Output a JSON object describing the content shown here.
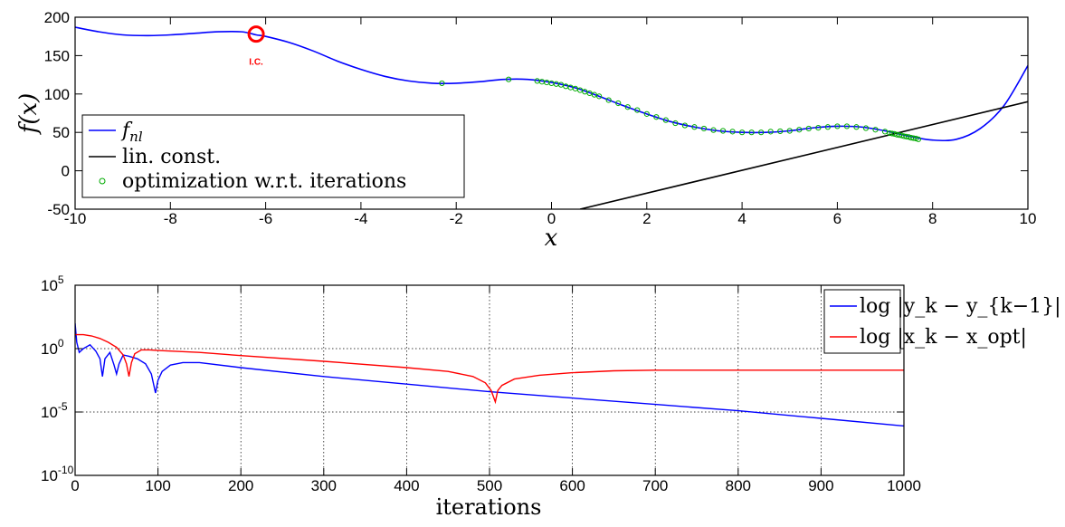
{
  "chart_data": [
    {
      "type": "line",
      "xlabel": "x",
      "ylabel": "f(x)",
      "xlim": [
        -10,
        10
      ],
      "ylim": [
        -50,
        200
      ],
      "xticks": [
        "-10",
        "-8",
        "-6",
        "-4",
        "-2",
        "0",
        "2",
        "4",
        "6",
        "8",
        "10"
      ],
      "yticks": [
        "-50",
        "0",
        "50",
        "100",
        "150",
        "200"
      ],
      "grid": false,
      "legend_position": "bottom-left",
      "series": [
        {
          "name": "f_nl",
          "legend_label": "f_nl",
          "color": "#0000ff",
          "style": "line",
          "x": [
            -10,
            -9.5,
            -9,
            -8.5,
            -8,
            -7.5,
            -7,
            -6.5,
            -6.2,
            -6,
            -5.5,
            -5,
            -4.5,
            -4,
            -3.5,
            -3,
            -2.5,
            -2,
            -1.5,
            -1,
            -0.5,
            0,
            0.5,
            1,
            1.5,
            2,
            2.5,
            3,
            3.5,
            4,
            4.5,
            5,
            5.5,
            6,
            6.5,
            7,
            7.5,
            8,
            8.5,
            9,
            9.5,
            10
          ],
          "y": [
            187,
            181,
            177,
            176,
            177,
            179,
            181,
            181,
            177,
            175,
            167,
            156,
            143,
            132,
            123,
            117,
            114,
            114,
            116,
            119,
            119,
            115,
            108,
            97,
            85,
            74,
            64,
            57,
            52,
            50,
            50,
            52,
            56,
            58,
            57,
            52,
            45,
            40,
            41,
            55,
            85,
            137
          ]
        },
        {
          "name": "lin. const.",
          "legend_label": "lin. const.",
          "color": "#000000",
          "style": "line",
          "x": [
            0.6,
            10
          ],
          "y": [
            -50,
            90
          ]
        },
        {
          "name": "optimization w.r.t. iterations",
          "legend_label": "optimization w.r.t. iterations",
          "color": "#00aa00",
          "style": "markers",
          "x": [
            -2.3,
            -0.9,
            -0.3,
            -0.2,
            -0.1,
            0,
            0.1,
            0.2,
            0.3,
            0.4,
            0.5,
            0.6,
            0.7,
            0.8,
            0.9,
            1.0,
            1.2,
            1.4,
            1.6,
            1.8,
            2.0,
            2.2,
            2.4,
            2.6,
            2.8,
            3.0,
            3.2,
            3.4,
            3.6,
            3.8,
            4.0,
            4.2,
            4.4,
            4.6,
            4.8,
            5.0,
            5.2,
            5.4,
            5.6,
            5.8,
            6.0,
            6.2,
            6.4,
            6.6,
            6.8,
            7.0,
            7.1,
            7.15,
            7.2,
            7.25,
            7.3,
            7.35,
            7.4,
            7.45,
            7.5,
            7.55,
            7.6,
            7.65,
            7.7
          ],
          "y": [
            114,
            119,
            117,
            116,
            115,
            114,
            113,
            112,
            110,
            108.5,
            107,
            105,
            103,
            101,
            99,
            97,
            92,
            88,
            83,
            79,
            74,
            70,
            66,
            62,
            59,
            57,
            55,
            53,
            52,
            51,
            50,
            50,
            50,
            51,
            51.5,
            52,
            53.5,
            55,
            56,
            57,
            58,
            58,
            57,
            55.5,
            53.5,
            51,
            49,
            48.5,
            48,
            47,
            46.5,
            46,
            45,
            44.5,
            44,
            43,
            42.5,
            42,
            41
          ]
        }
      ],
      "annotations": [
        {
          "text": "I.C.",
          "x": -6.2,
          "y": 178,
          "color": "#ff0000",
          "marker": "circle"
        }
      ]
    },
    {
      "type": "line",
      "xlabel": "iterations",
      "ylabel": "",
      "xlim": [
        0,
        1000
      ],
      "ylim_exponent": [
        -10,
        5
      ],
      "yscale": "log",
      "xticks": [
        "0",
        "100",
        "200",
        "300",
        "400",
        "500",
        "600",
        "700",
        "800",
        "900",
        "1000"
      ],
      "yticks": [
        {
          "base": "10",
          "exp": "5",
          "value_exp": 5
        },
        {
          "base": "10",
          "exp": "0",
          "value_exp": 0
        },
        {
          "base": "10",
          "exp": "-5",
          "value_exp": -5
        },
        {
          "base": "10",
          "exp": "-10",
          "value_exp": -10
        }
      ],
      "grid": true,
      "legend_position": "top-right",
      "series": [
        {
          "name": "log|y_k - y_k-1|",
          "legend_label": "log |y_k − y_{k−1}|",
          "color": "#0000ff",
          "x_exp_pairs": [
            [
              0,
              2
            ],
            [
              2,
              0.5
            ],
            [
              5,
              -0.3
            ],
            [
              10,
              0
            ],
            [
              18,
              0.3
            ],
            [
              25,
              -0.2
            ],
            [
              30,
              -0.8
            ],
            [
              33,
              -2.2
            ],
            [
              36,
              -0.8
            ],
            [
              42,
              -0.3
            ],
            [
              47,
              -1.3
            ],
            [
              50,
              -2
            ],
            [
              53,
              -1.2
            ],
            [
              58,
              -0.5
            ],
            [
              65,
              -0.6
            ],
            [
              75,
              -0.8
            ],
            [
              85,
              -1.2
            ],
            [
              92,
              -2
            ],
            [
              97,
              -3.5
            ],
            [
              100,
              -2.5
            ],
            [
              105,
              -1.8
            ],
            [
              115,
              -1.3
            ],
            [
              130,
              -1.1
            ],
            [
              150,
              -1.1
            ],
            [
              200,
              -1.5
            ],
            [
              300,
              -2.2
            ],
            [
              400,
              -2.8
            ],
            [
              500,
              -3.4
            ],
            [
              600,
              -3.9
            ],
            [
              700,
              -4.4
            ],
            [
              800,
              -4.9
            ],
            [
              900,
              -5.5
            ],
            [
              1000,
              -6.1
            ]
          ]
        },
        {
          "name": "log|x_k - x_opt|",
          "legend_label": "log |x_k − x_opt|",
          "color": "#ff0000",
          "x_exp_pairs": [
            [
              0,
              1.1
            ],
            [
              10,
              1.1
            ],
            [
              20,
              1.0
            ],
            [
              30,
              0.8
            ],
            [
              40,
              0.5
            ],
            [
              50,
              0.1
            ],
            [
              58,
              -0.5
            ],
            [
              62,
              -1.2
            ],
            [
              65,
              -2.2
            ],
            [
              68,
              -1.1
            ],
            [
              72,
              -0.4
            ],
            [
              80,
              -0.1
            ],
            [
              90,
              -0.1
            ],
            [
              100,
              -0.15
            ],
            [
              150,
              -0.3
            ],
            [
              200,
              -0.55
            ],
            [
              300,
              -1.0
            ],
            [
              400,
              -1.5
            ],
            [
              450,
              -1.8
            ],
            [
              480,
              -2.2
            ],
            [
              495,
              -2.7
            ],
            [
              502,
              -3.3
            ],
            [
              507,
              -4.2
            ],
            [
              510,
              -3.3
            ],
            [
              515,
              -2.9
            ],
            [
              530,
              -2.4
            ],
            [
              560,
              -2.1
            ],
            [
              600,
              -1.9
            ],
            [
              650,
              -1.75
            ],
            [
              700,
              -1.7
            ],
            [
              800,
              -1.7
            ],
            [
              1000,
              -1.7
            ]
          ]
        }
      ]
    }
  ]
}
